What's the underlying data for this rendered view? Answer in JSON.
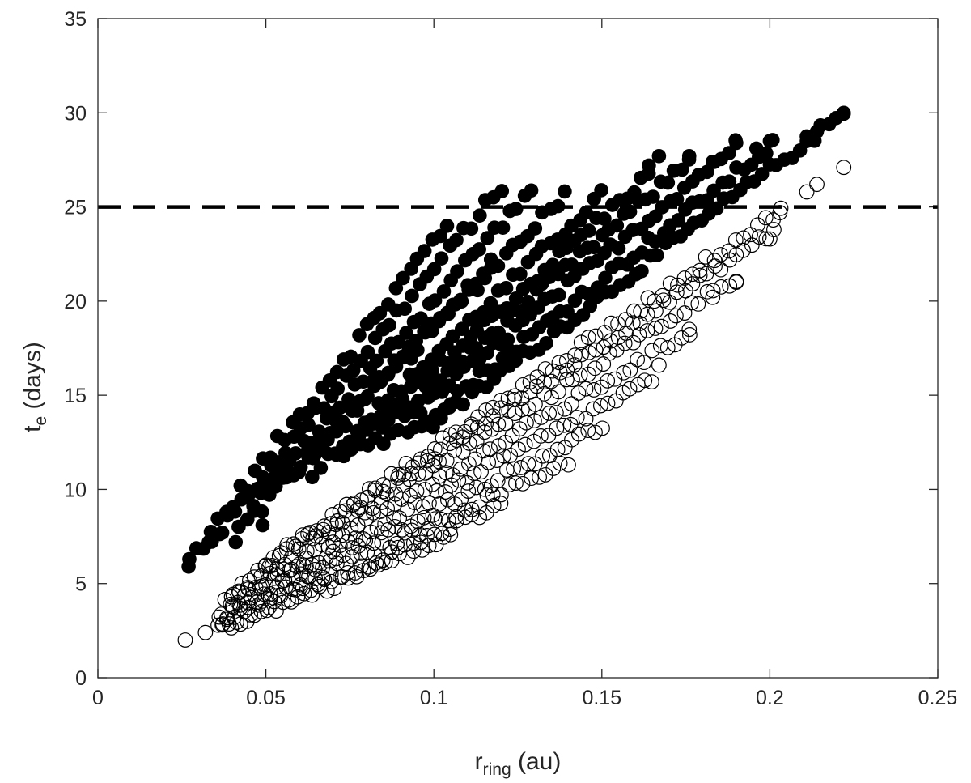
{
  "chart_data": {
    "type": "scatter",
    "title": "",
    "xlabel": {
      "main": "r",
      "sub": "ring",
      "unit": " (au)"
    },
    "ylabel": {
      "main": "t",
      "sub": "e",
      "unit": " (days)"
    },
    "xlim": [
      0,
      0.25
    ],
    "ylim": [
      0,
      35
    ],
    "xticks": [
      0,
      0.05,
      0.1,
      0.15,
      0.2,
      0.25
    ],
    "yticks": [
      0,
      5,
      10,
      15,
      20,
      25,
      30,
      35
    ],
    "xtick_labels": [
      "0",
      "0.05",
      "0.1",
      "0.15",
      "0.2",
      "0.25"
    ],
    "ytick_labels": [
      "0",
      "5",
      "10",
      "15",
      "20",
      "25",
      "30",
      "35"
    ],
    "grid": false,
    "reference_line": {
      "orientation": "horizontal",
      "y": 25,
      "style": "dashed",
      "color": "#000000"
    },
    "colors": {
      "marker": "#000000",
      "axis": "#262626",
      "background": "#ffffff"
    },
    "series": [
      {
        "marker": "filled-circle",
        "ray_bundles": [
          {
            "slope": 187.5,
            "x_start": 0.042,
            "x_end": 0.117,
            "jitter": 0.45
          },
          {
            "slope": 232.0,
            "x_start": 0.027,
            "x_end": 0.104,
            "jitter": 0.45
          },
          {
            "slope": 217.0,
            "x_start": 0.034,
            "x_end": 0.12,
            "jitter": 0.3
          },
          {
            "slope": 201.0,
            "x_start": 0.046,
            "x_end": 0.129,
            "jitter": 0.3
          },
          {
            "slope": 185.0,
            "x_start": 0.056,
            "x_end": 0.139,
            "jitter": 0.3
          },
          {
            "slope": 171.0,
            "x_start": 0.064,
            "x_end": 0.15,
            "jitter": 0.3
          },
          {
            "slope": 163.0,
            "x_start": 0.071,
            "x_end": 0.164,
            "jitter": 0.3
          },
          {
            "slope": 156.0,
            "x_start": 0.078,
            "x_end": 0.176,
            "jitter": 0.3
          },
          {
            "slope": 149.0,
            "x_start": 0.085,
            "x_end": 0.19,
            "jitter": 0.3
          },
          {
            "slope": 141.0,
            "x_start": 0.092,
            "x_end": 0.201,
            "jitter": 0.3
          },
          {
            "slope": 135.0,
            "x_start": 0.1,
            "x_end": 0.222,
            "jitter": 0.3
          }
        ],
        "points": [
          {
            "x": 0.027,
            "y": 5.9
          },
          {
            "x": 0.033,
            "y": 7.2
          },
          {
            "x": 0.037,
            "y": 7.7
          },
          {
            "x": 0.041,
            "y": 7.2
          },
          {
            "x": 0.049,
            "y": 8.1
          },
          {
            "x": 0.211,
            "y": 28.5
          },
          {
            "x": 0.214,
            "y": 29.0
          },
          {
            "x": 0.222,
            "y": 30.0
          },
          {
            "x": 0.2,
            "y": 28.5
          },
          {
            "x": 0.196,
            "y": 28.1
          },
          {
            "x": 0.19,
            "y": 28.4
          },
          {
            "x": 0.176,
            "y": 27.7
          },
          {
            "x": 0.167,
            "y": 27.7
          },
          {
            "x": 0.164,
            "y": 27.2
          },
          {
            "x": 0.183,
            "y": 27.4
          }
        ]
      },
      {
        "marker": "open-circle",
        "ray_bundles": [
          {
            "slope": 71.0,
            "x_start": 0.04,
            "x_end": 0.105,
            "jitter": 0.25
          },
          {
            "slope": 76.0,
            "x_start": 0.037,
            "x_end": 0.12,
            "jitter": 0.25
          },
          {
            "slope": 82.0,
            "x_start": 0.036,
            "x_end": 0.14,
            "jitter": 0.25
          },
          {
            "slope": 89.0,
            "x_start": 0.036,
            "x_end": 0.15,
            "jitter": 0.25
          },
          {
            "slope": 96.0,
            "x_start": 0.037,
            "x_end": 0.165,
            "jitter": 0.25
          },
          {
            "slope": 104.0,
            "x_start": 0.038,
            "x_end": 0.176,
            "jitter": 0.25
          },
          {
            "slope": 112.0,
            "x_start": 0.04,
            "x_end": 0.19,
            "jitter": 0.25
          },
          {
            "slope": 118.0,
            "x_start": 0.043,
            "x_end": 0.201,
            "jitter": 0.25
          },
          {
            "slope": 122.0,
            "x_start": 0.05,
            "x_end": 0.203,
            "jitter": 0.25
          }
        ],
        "points": [
          {
            "x": 0.026,
            "y": 2.0
          },
          {
            "x": 0.032,
            "y": 2.4
          },
          {
            "x": 0.037,
            "y": 2.8
          },
          {
            "x": 0.04,
            "y": 3.8
          },
          {
            "x": 0.222,
            "y": 27.1
          },
          {
            "x": 0.214,
            "y": 26.2
          },
          {
            "x": 0.211,
            "y": 25.8
          },
          {
            "x": 0.203,
            "y": 24.7
          },
          {
            "x": 0.2,
            "y": 23.3
          },
          {
            "x": 0.19,
            "y": 21.0
          },
          {
            "x": 0.183,
            "y": 20.2
          },
          {
            "x": 0.176,
            "y": 18.5
          },
          {
            "x": 0.167,
            "y": 16.6
          },
          {
            "x": 0.062,
            "y": 5.9
          },
          {
            "x": 0.07,
            "y": 7.2
          }
        ]
      }
    ]
  }
}
